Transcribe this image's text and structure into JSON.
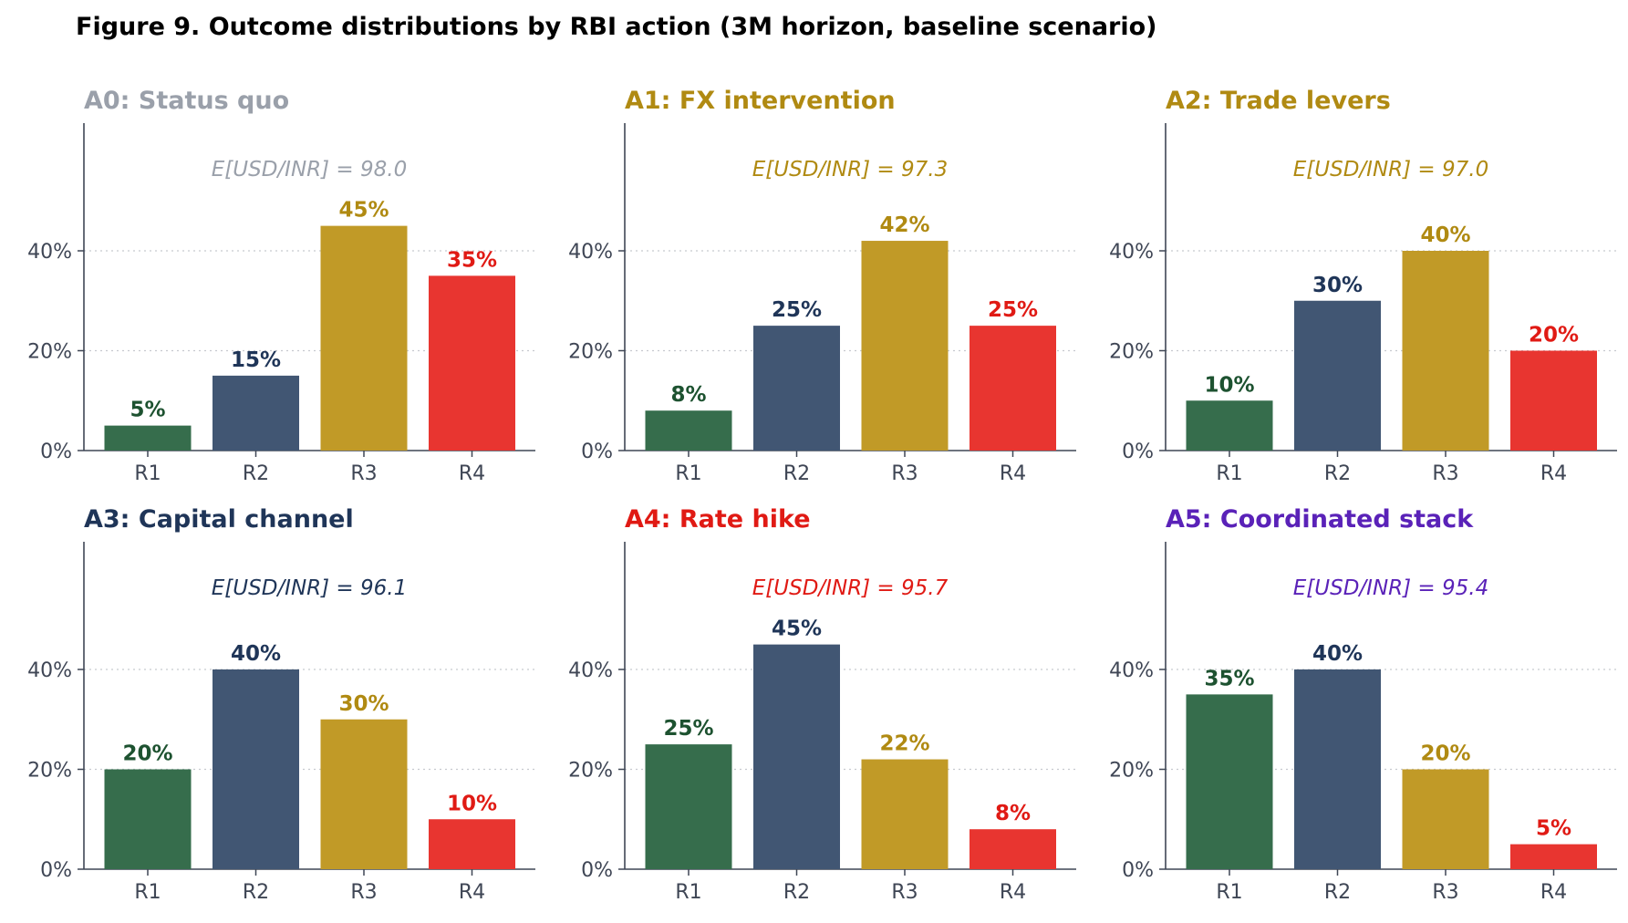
{
  "title": "Figure 9. Outcome distributions by RBI action (3M horizon, baseline scenario)",
  "colors": {
    "R1": "#366d4c",
    "R2": "#415673",
    "R3": "#c19a27",
    "R4": "#e83530",
    "R1_label": "#1d5230",
    "R2_label": "#1f3558",
    "R3_label": "#b08a12",
    "R4_label": "#e01a14",
    "axis": "#3f4655",
    "grid": "#c6c9cf"
  },
  "chart_data": [
    {
      "type": "bar",
      "title": "A0: Status quo",
      "title_color": "#9aa0aa",
      "annotation": "E[USD/INR] = 98.0",
      "categories": [
        "R1",
        "R2",
        "R3",
        "R4"
      ],
      "values": [
        5,
        15,
        45,
        35
      ],
      "data_labels": [
        "5%",
        "15%",
        "45%",
        "35%"
      ],
      "yticks": [
        "0%",
        "20%",
        "40%"
      ],
      "ylim": [
        0,
        65
      ],
      "grid": "horizontal dotted"
    },
    {
      "type": "bar",
      "title": "A1: FX intervention",
      "title_color": "#b08a12",
      "annotation": "E[USD/INR] = 97.3",
      "categories": [
        "R1",
        "R2",
        "R3",
        "R4"
      ],
      "values": [
        8,
        25,
        42,
        25
      ],
      "data_labels": [
        "8%",
        "25%",
        "42%",
        "25%"
      ],
      "yticks": [
        "0%",
        "20%",
        "40%"
      ],
      "ylim": [
        0,
        65
      ],
      "grid": "horizontal dotted"
    },
    {
      "type": "bar",
      "title": "A2: Trade levers",
      "title_color": "#b08a12",
      "annotation": "E[USD/INR] = 97.0",
      "categories": [
        "R1",
        "R2",
        "R3",
        "R4"
      ],
      "values": [
        10,
        30,
        40,
        20
      ],
      "data_labels": [
        "10%",
        "30%",
        "40%",
        "20%"
      ],
      "yticks": [
        "0%",
        "20%",
        "40%"
      ],
      "ylim": [
        0,
        65
      ],
      "grid": "horizontal dotted"
    },
    {
      "type": "bar",
      "title": "A3: Capital channel",
      "title_color": "#1f3558",
      "annotation": "E[USD/INR] = 96.1",
      "categories": [
        "R1",
        "R2",
        "R3",
        "R4"
      ],
      "values": [
        20,
        40,
        30,
        10
      ],
      "data_labels": [
        "20%",
        "40%",
        "30%",
        "10%"
      ],
      "yticks": [
        "0%",
        "20%",
        "40%"
      ],
      "ylim": [
        0,
        65
      ],
      "grid": "horizontal dotted"
    },
    {
      "type": "bar",
      "title": "A4: Rate hike",
      "title_color": "#e01a14",
      "annotation": "E[USD/INR] = 95.7",
      "categories": [
        "R1",
        "R2",
        "R3",
        "R4"
      ],
      "values": [
        25,
        45,
        22,
        8
      ],
      "data_labels": [
        "25%",
        "45%",
        "22%",
        "8%"
      ],
      "yticks": [
        "0%",
        "20%",
        "40%"
      ],
      "ylim": [
        0,
        65
      ],
      "grid": "horizontal dotted"
    },
    {
      "type": "bar",
      "title": "A5: Coordinated stack",
      "title_color": "#5a22b8",
      "annotation": "E[USD/INR] = 95.4",
      "categories": [
        "R1",
        "R2",
        "R3",
        "R4"
      ],
      "values": [
        35,
        40,
        20,
        5
      ],
      "data_labels": [
        "35%",
        "40%",
        "20%",
        "5%"
      ],
      "yticks": [
        "0%",
        "20%",
        "40%"
      ],
      "ylim": [
        0,
        65
      ],
      "grid": "horizontal dotted"
    }
  ]
}
